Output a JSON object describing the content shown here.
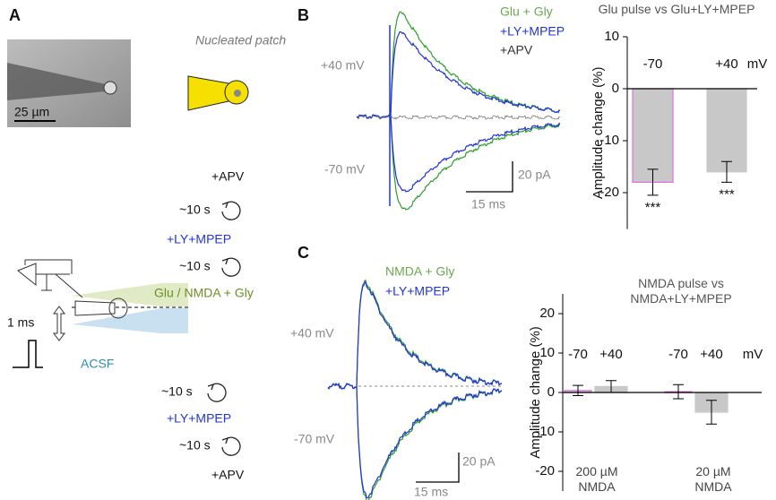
{
  "panel_labels": [
    "A",
    "B",
    "C"
  ],
  "panel_a": {
    "scale_bar": "25 µm",
    "title": "Nucleated patch",
    "protocol": [
      "+APV",
      "~10 s",
      "+LY+MPEP",
      "~10 s",
      "Glu / NMDA + Gly",
      "1 ms",
      "ACSF",
      "~10 s",
      "+LY+MPEP",
      "~10 s",
      "+APV"
    ]
  },
  "panel_b_traces": {
    "legend": [
      "Glu + Gly",
      "+LY+MPEP",
      "+APV"
    ],
    "holding": [
      "+40 mV",
      "-70 mV"
    ],
    "scale": [
      "20 pA",
      "15 ms"
    ]
  },
  "panel_c_traces": {
    "legend": [
      "NMDA + Gly",
      "+LY+MPEP"
    ],
    "holding": [
      "+40 mV",
      "-70 mV"
    ],
    "scale": [
      "20 pA",
      "15 ms"
    ]
  },
  "chart_data": [
    {
      "type": "bar",
      "title": "Glu pulse vs Glu+LY+MPEP",
      "y_label": "Amplitude change (%)",
      "categories": [
        "-70",
        "+40"
      ],
      "category_colors": [
        "#b9a0d8",
        "#111111"
      ],
      "unit": "mV",
      "values": [
        -18,
        -16
      ],
      "errors": [
        2.5,
        2
      ],
      "annotations": [
        "***",
        "***"
      ],
      "color": "#c8c8c8",
      "edge_colors": [
        "#e070e0",
        "#c8c8c8"
      ],
      "ylim": [
        -27,
        10
      ],
      "yticks": [
        10,
        0,
        -10,
        -20
      ]
    },
    {
      "type": "bar",
      "title": "NMDA pulse vs NMDA+LY+MPEP",
      "y_label": "Amplitude change (%)",
      "categories": [
        "-70",
        "+40",
        "-70",
        "+40"
      ],
      "category_colors": [
        "#b9a0d8",
        "#111111",
        "#b9a0d8",
        "#111111"
      ],
      "unit": "mV",
      "group_labels": [
        "200 µM NMDA",
        "20 µM NMDA"
      ],
      "values": [
        0.5,
        1.5,
        0.2,
        -5
      ],
      "errors": [
        1.3,
        1.5,
        1.8,
        3
      ],
      "color": "#c8c8c8",
      "edge_colors": [
        "#e070e0",
        "#c8c8c8",
        "#e070e0",
        "#c8c8c8"
      ],
      "ylim": [
        -25,
        25
      ],
      "yticks": [
        20,
        10,
        0,
        -10,
        -20
      ]
    }
  ]
}
